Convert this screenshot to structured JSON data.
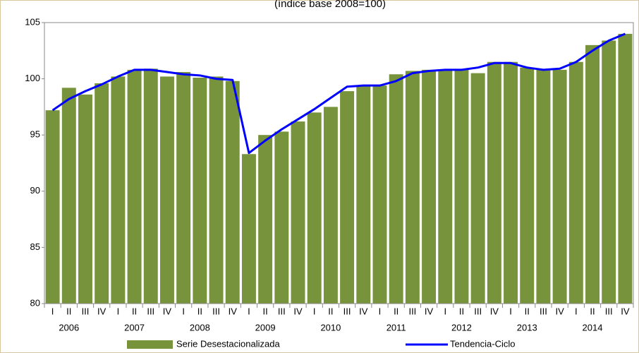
{
  "chart_data": {
    "type": "bar-line",
    "subtitle": "(índice base 2008=100)",
    "categories": [
      "I",
      "II",
      "III",
      "IV",
      "I",
      "II",
      "III",
      "IV",
      "I",
      "II",
      "III",
      "IV",
      "I",
      "II",
      "III",
      "IV",
      "I",
      "II",
      "III",
      "IV",
      "I",
      "II",
      "III",
      "IV",
      "I",
      "II",
      "III",
      "IV",
      "I",
      "II",
      "III",
      "IV",
      "I",
      "II",
      "III",
      "IV"
    ],
    "groups": [
      "2006",
      "2007",
      "2008",
      "2009",
      "2010",
      "2011",
      "2012",
      "2013",
      "2014"
    ],
    "series": [
      {
        "name": "Serie Desestacionalizada",
        "kind": "bar",
        "color": "#77933c",
        "values": [
          97.2,
          99.2,
          98.6,
          99.6,
          100.2,
          100.8,
          100.9,
          100.2,
          100.6,
          100.1,
          100.2,
          99.8,
          93.3,
          95.0,
          95.3,
          96.2,
          97.0,
          97.5,
          98.9,
          99.4,
          99.4,
          100.4,
          100.7,
          100.8,
          100.8,
          100.8,
          100.5,
          101.5,
          101.5,
          101.0,
          100.8,
          100.8,
          101.5,
          103.0,
          103.4,
          104.0
        ]
      },
      {
        "name": "Tendencia-Ciclo",
        "kind": "line",
        "color": "#0000ff",
        "values": [
          97.2,
          98.2,
          98.9,
          99.5,
          100.2,
          100.8,
          100.8,
          100.6,
          100.4,
          100.3,
          100.0,
          99.9,
          93.4,
          94.5,
          95.5,
          96.4,
          97.3,
          98.3,
          99.3,
          99.4,
          99.4,
          99.8,
          100.5,
          100.7,
          100.8,
          100.8,
          101.0,
          101.4,
          101.4,
          101.0,
          100.8,
          100.9,
          101.5,
          102.5,
          103.4,
          104.0
        ]
      }
    ],
    "ylim": [
      80,
      105
    ],
    "yticks": [
      80,
      85,
      90,
      95,
      100,
      105
    ],
    "legend": "bottom"
  }
}
